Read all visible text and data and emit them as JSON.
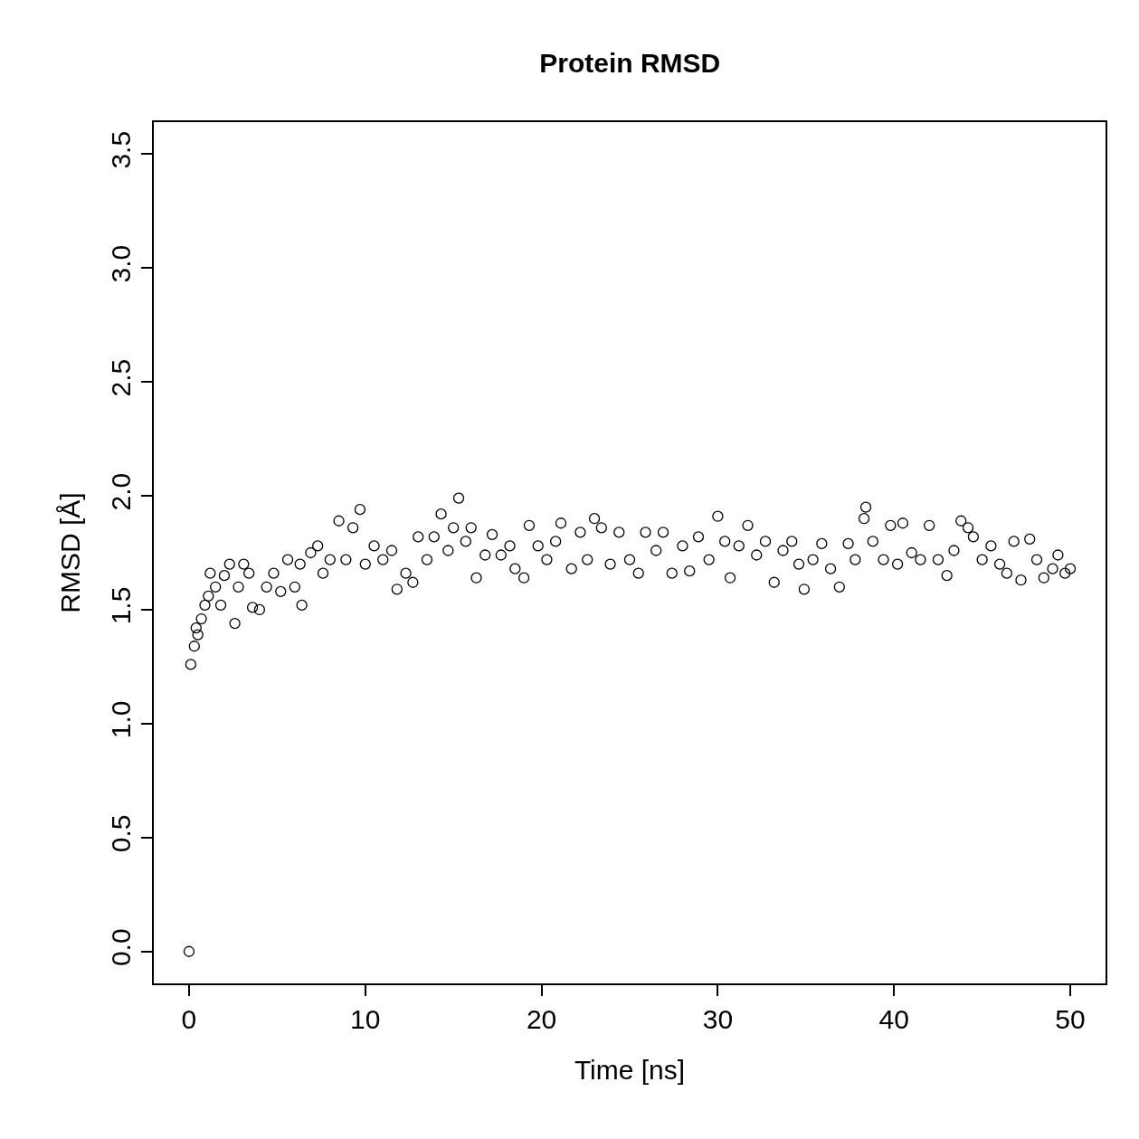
{
  "chart_data": {
    "type": "scatter",
    "title": "Protein RMSD",
    "xlabel": "Time [ns]",
    "ylabel": "RMSD [Å]",
    "x": [
      0,
      0.1,
      0.3,
      0.4,
      0.5,
      0.7,
      0.9,
      1.1,
      1.2,
      1.5,
      1.8,
      2.0,
      2.3,
      2.6,
      2.8,
      3.1,
      3.4,
      3.6,
      4.0,
      4.4,
      4.8,
      5.2,
      5.6,
      6.0,
      6.3,
      6.4,
      6.9,
      7.3,
      7.6,
      8.0,
      8.5,
      8.9,
      9.3,
      9.7,
      10.0,
      10.5,
      11.0,
      11.5,
      11.8,
      12.3,
      12.7,
      13.0,
      13.5,
      13.9,
      14.3,
      14.7,
      15.0,
      15.3,
      15.7,
      16.0,
      16.3,
      16.8,
      17.2,
      17.7,
      18.2,
      18.5,
      19.0,
      19.3,
      19.8,
      20.3,
      20.8,
      21.1,
      21.7,
      22.2,
      22.6,
      23.0,
      23.4,
      23.9,
      24.4,
      25.0,
      25.5,
      25.9,
      26.5,
      26.9,
      27.4,
      28.0,
      28.4,
      28.9,
      29.5,
      30.0,
      30.4,
      30.7,
      31.2,
      31.7,
      32.2,
      32.7,
      33.2,
      33.7,
      34.2,
      34.6,
      34.9,
      35.4,
      35.9,
      36.4,
      36.9,
      37.4,
      37.8,
      38.3,
      38.4,
      38.8,
      39.4,
      39.8,
      40.2,
      40.5,
      41.0,
      41.5,
      42.0,
      42.5,
      43.0,
      43.4,
      43.8,
      44.2,
      44.5,
      45.0,
      45.5,
      46.0,
      46.4,
      46.8,
      47.2,
      47.7,
      48.1,
      48.5,
      49.0,
      49.3,
      49.7,
      50.0
    ],
    "values": [
      0.0,
      1.26,
      1.34,
      1.42,
      1.39,
      1.46,
      1.52,
      1.56,
      1.66,
      1.6,
      1.52,
      1.65,
      1.7,
      1.44,
      1.6,
      1.7,
      1.66,
      1.51,
      1.5,
      1.6,
      1.66,
      1.58,
      1.72,
      1.6,
      1.7,
      1.52,
      1.75,
      1.78,
      1.66,
      1.72,
      1.89,
      1.72,
      1.86,
      1.94,
      1.7,
      1.78,
      1.72,
      1.76,
      1.59,
      1.66,
      1.62,
      1.82,
      1.72,
      1.82,
      1.92,
      1.76,
      1.86,
      1.99,
      1.8,
      1.86,
      1.64,
      1.74,
      1.83,
      1.74,
      1.78,
      1.68,
      1.64,
      1.87,
      1.78,
      1.72,
      1.8,
      1.88,
      1.68,
      1.84,
      1.72,
      1.9,
      1.86,
      1.7,
      1.84,
      1.72,
      1.66,
      1.84,
      1.76,
      1.84,
      1.66,
      1.78,
      1.67,
      1.82,
      1.72,
      1.91,
      1.8,
      1.64,
      1.78,
      1.87,
      1.74,
      1.8,
      1.62,
      1.76,
      1.8,
      1.7,
      1.59,
      1.72,
      1.79,
      1.68,
      1.6,
      1.79,
      1.72,
      1.9,
      1.95,
      1.8,
      1.72,
      1.87,
      1.7,
      1.88,
      1.75,
      1.72,
      1.87,
      1.72,
      1.65,
      1.76,
      1.89,
      1.86,
      1.82,
      1.72,
      1.78,
      1.7,
      1.66,
      1.8,
      1.63,
      1.81,
      1.72,
      1.64,
      1.68,
      1.74,
      1.66,
      1.68
    ],
    "color": "#000000",
    "marker": "circle",
    "xlim": [
      -2,
      52
    ],
    "xticks": [
      0,
      10,
      20,
      30,
      40,
      50
    ],
    "ylim": [
      -0.14,
      3.64
    ],
    "yticks": [
      {
        "value": 0,
        "label": "0.0"
      },
      {
        "value": 0.5,
        "label": "0.5"
      },
      {
        "value": 1,
        "label": "1.0"
      },
      {
        "value": 1.5,
        "label": "1.5"
      },
      {
        "value": 2,
        "label": "2.0"
      },
      {
        "value": 2.5,
        "label": "2.5"
      },
      {
        "value": 3,
        "label": "3.0"
      },
      {
        "value": 3.5,
        "label": "3.5"
      }
    ]
  }
}
